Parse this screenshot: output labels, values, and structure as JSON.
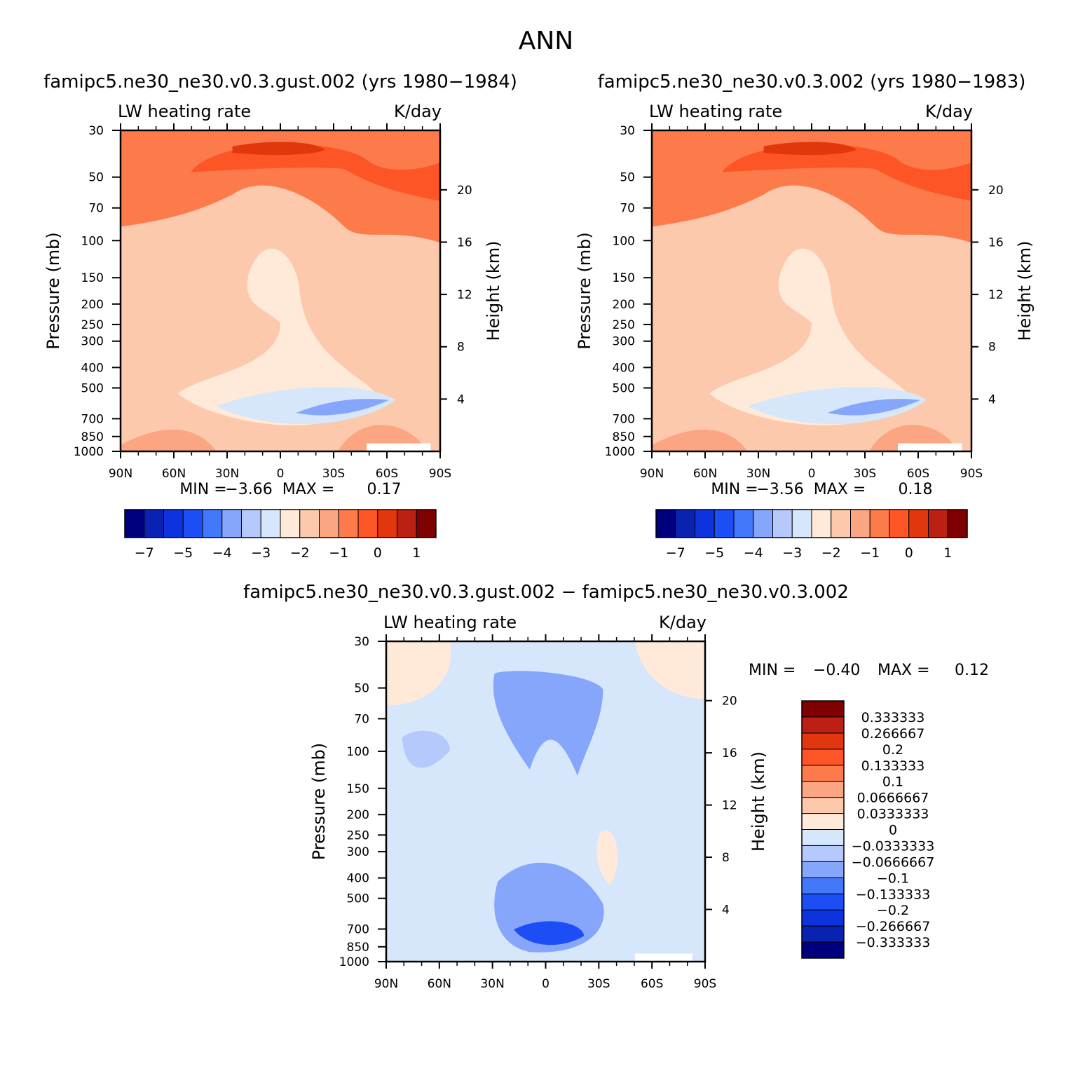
{
  "figure_title": "ANN",
  "chart_data": [
    {
      "type": "heatmap",
      "title": "famipc5.ne30_ne30.v0.3.gust.002 (yrs 1980−1984)",
      "left_string": "LW heating rate",
      "right_string": "K/day",
      "ylabel": "Pressure (mb)",
      "ylabel_right": "Height (km)",
      "x_ticks": [
        "90N",
        "60N",
        "30N",
        "0",
        "30S",
        "60S",
        "90S"
      ],
      "y_ticks": [
        30,
        50,
        70,
        100,
        150,
        200,
        250,
        300,
        400,
        500,
        700,
        850,
        1000
      ],
      "y2_ticks": [
        20,
        16,
        12,
        8,
        4
      ],
      "ylim": [
        1000,
        30
      ],
      "xlim": [
        90,
        -90
      ],
      "min_label": "MIN =",
      "min_value": "−3.66",
      "max_label": "MAX =",
      "max_value": "0.17",
      "colorbar": {
        "orientation": "horizontal",
        "colors": [
          "#00007f",
          "#0a22b2",
          "#0d33de",
          "#1d4ef5",
          "#4478fa",
          "#86a6fb",
          "#b5c9fc",
          "#d6e6fb",
          "#ffe9d9",
          "#fdc9ad",
          "#fca582",
          "#fd7a4b",
          "#fd5525",
          "#e2360d",
          "#bb2012",
          "#7f0000"
        ],
        "labels": [
          "−7",
          "−5",
          "−4",
          "−3",
          "−2",
          "−1",
          "0",
          "1"
        ]
      }
    },
    {
      "type": "heatmap",
      "title": "famipc5.ne30_ne30.v0.3.002 (yrs 1980−1983)",
      "left_string": "LW heating rate",
      "right_string": "K/day",
      "ylabel": "Pressure (mb)",
      "ylabel_right": "Height (km)",
      "x_ticks": [
        "90N",
        "60N",
        "30N",
        "0",
        "30S",
        "60S",
        "90S"
      ],
      "y_ticks": [
        30,
        50,
        70,
        100,
        150,
        200,
        250,
        300,
        400,
        500,
        700,
        850,
        1000
      ],
      "y2_ticks": [
        20,
        16,
        12,
        8,
        4
      ],
      "ylim": [
        1000,
        30
      ],
      "xlim": [
        90,
        -90
      ],
      "min_label": "MIN =",
      "min_value": "−3.56",
      "max_label": "MAX =",
      "max_value": "0.18",
      "colorbar": {
        "orientation": "horizontal",
        "colors": [
          "#00007f",
          "#0a22b2",
          "#0d33de",
          "#1d4ef5",
          "#4478fa",
          "#86a6fb",
          "#b5c9fc",
          "#d6e6fb",
          "#ffe9d9",
          "#fdc9ad",
          "#fca582",
          "#fd7a4b",
          "#fd5525",
          "#e2360d",
          "#bb2012",
          "#7f0000"
        ],
        "labels": [
          "−7",
          "−5",
          "−4",
          "−3",
          "−2",
          "−1",
          "0",
          "1"
        ]
      }
    },
    {
      "type": "heatmap",
      "title": "famipc5.ne30_ne30.v0.3.gust.002 − famipc5.ne30_ne30.v0.3.002",
      "left_string": "LW heating rate",
      "right_string": "K/day",
      "ylabel": "Pressure (mb)",
      "ylabel_right": "Height (km)",
      "x_ticks": [
        "90N",
        "60N",
        "30N",
        "0",
        "30S",
        "60S",
        "90S"
      ],
      "y_ticks": [
        30,
        50,
        70,
        100,
        150,
        200,
        250,
        300,
        400,
        500,
        700,
        850,
        1000
      ],
      "y2_ticks": [
        20,
        16,
        12,
        8,
        4
      ],
      "ylim": [
        1000,
        30
      ],
      "xlim": [
        90,
        -90
      ],
      "min_label": "MIN =",
      "min_value": "−0.40",
      "max_label": "MAX =",
      "max_value": "0.12",
      "colorbar": {
        "orientation": "vertical",
        "colors": [
          "#00007f",
          "#0a22b2",
          "#0d33de",
          "#1d4ef5",
          "#4478fa",
          "#86a6fb",
          "#b5c9fc",
          "#d6e6fb",
          "#ffe9d9",
          "#fdc9ad",
          "#fca582",
          "#fd7a4b",
          "#fd5525",
          "#e2360d",
          "#bb2012",
          "#7f0000"
        ],
        "labels": [
          "0.333333",
          "0.266667",
          "0.2",
          "0.133333",
          "0.1",
          "0.0666667",
          "0.0333333",
          "0",
          "−0.0333333",
          "−0.0666667",
          "−0.1",
          "−0.133333",
          "−0.2",
          "−0.266667",
          "−0.333333"
        ]
      }
    }
  ]
}
